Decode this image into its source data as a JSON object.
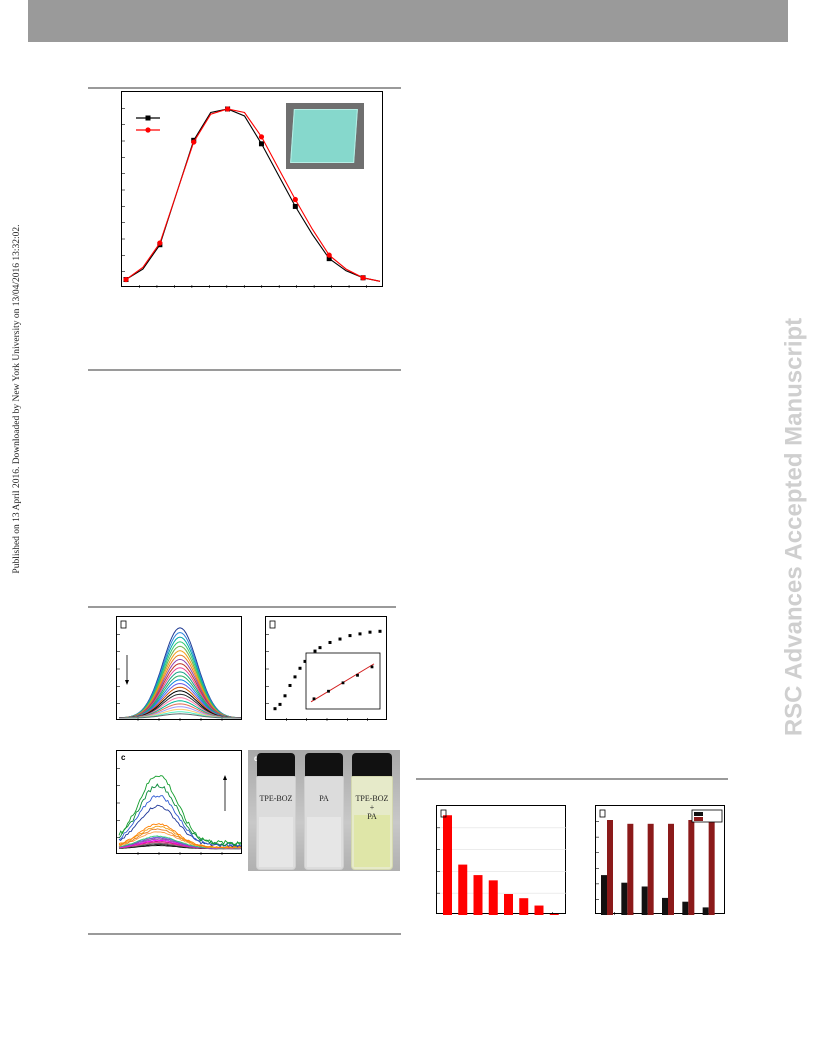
{
  "sidebar": {
    "published_note": "Published on 13 April 2016. Downloaded by New York University on 13/04/2016 13:32:02."
  },
  "watermark": {
    "text": "RSC Advances Accepted Manuscript"
  },
  "figure_labels": {
    "c": "c",
    "d": "d"
  },
  "vials": {
    "left": "TPE-BOZ",
    "middle": "PA",
    "right_top": "TPE-BOZ",
    "right_plus": "+",
    "right_bottom": "PA"
  },
  "colors": {
    "header": "#9a9a9a",
    "series_black": "#000000",
    "series_red": "#ff0000",
    "inset_fit": "#d21e1e",
    "bar_red": "#ff0000",
    "bar_dark": "#111111",
    "bar_maroon": "#8b1a1a",
    "film": "#7fd6c8",
    "watermark": "#cfcfcf"
  },
  "chart_data": [
    {
      "type": "line",
      "panel": "top-emission",
      "x": [
        0,
        1,
        2,
        3,
        4,
        5,
        6,
        7,
        8,
        9,
        10,
        11,
        12,
        13,
        14,
        15
      ],
      "series": [
        {
          "color": "black",
          "values": [
            0.02,
            0.08,
            0.22,
            0.52,
            0.82,
            0.98,
            1.0,
            0.96,
            0.8,
            0.62,
            0.44,
            0.28,
            0.14,
            0.07,
            0.03,
            0.01
          ]
        },
        {
          "color": "red",
          "values": [
            0.02,
            0.09,
            0.23,
            0.52,
            0.81,
            0.97,
            1.0,
            0.98,
            0.84,
            0.66,
            0.48,
            0.31,
            0.16,
            0.08,
            0.03,
            0.01
          ]
        }
      ],
      "inset": "photo of fluorescent film"
    },
    {
      "type": "line",
      "panel": "a-titration",
      "note": "family of emission curves decreasing in intensity",
      "num_curves": 24
    },
    {
      "type": "scatter",
      "panel": "b-quenching",
      "x": [
        1,
        2,
        3,
        4,
        5,
        6,
        7,
        8,
        9,
        10,
        12,
        14,
        16,
        18,
        20,
        22
      ],
      "values": [
        0.05,
        0.1,
        0.2,
        0.32,
        0.42,
        0.52,
        0.6,
        0.66,
        0.72,
        0.76,
        0.82,
        0.86,
        0.9,
        0.92,
        0.94,
        0.95
      ],
      "inset": {
        "type": "scatter-fit",
        "x": [
          1,
          2,
          3,
          4,
          5
        ],
        "values": [
          0.1,
          0.28,
          0.48,
          0.66,
          0.86
        ]
      }
    },
    {
      "type": "line",
      "panel": "c-emission",
      "note": "family of noisy emission curves increasing in intensity",
      "num_curves": 18
    },
    {
      "type": "bar",
      "panel": "bottom-left",
      "values": [
        0.95,
        0.48,
        0.38,
        0.33,
        0.2,
        0.16,
        0.09,
        0.01
      ]
    },
    {
      "type": "bar",
      "panel": "bottom-right",
      "series": [
        {
          "color": "dark",
          "values": [
            0.42,
            0.34,
            0.3,
            0.18,
            0.14,
            0.08
          ]
        },
        {
          "color": "maroon",
          "values": [
            1.0,
            0.96,
            0.96,
            0.96,
            1.0,
            1.0
          ]
        }
      ]
    }
  ]
}
